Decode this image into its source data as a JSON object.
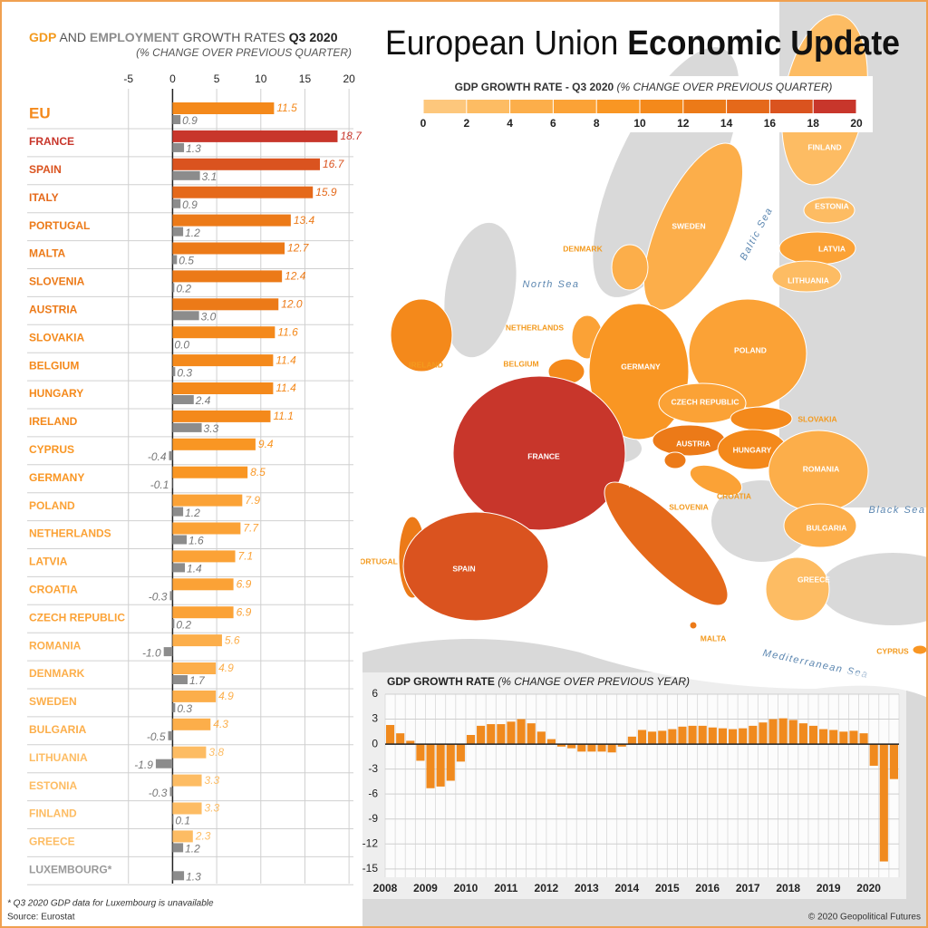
{
  "title": "European Union",
  "title_bold": "Economic Update",
  "footnote": "* Q3 2020 GDP data for Luxembourg is unavailable",
  "source": "Source: Eurostat",
  "copyright": "© 2020 Geopolitical Futures",
  "map": {
    "legend": {
      "title": "GDP GROWTH RATE - Q3 2020",
      "subtitle": "(% CHANGE OVER PREVIOUS QUARTER)",
      "ticks": [
        0,
        2,
        4,
        6,
        8,
        10,
        12,
        14,
        16,
        18,
        20
      ],
      "colors": [
        "#fdc77c",
        "#fdbc63",
        "#fcae4a",
        "#fba236",
        "#f99623",
        "#f4891b",
        "#ec7a18",
        "#e5691a",
        "#da531f",
        "#c8362b"
      ]
    },
    "countries": [
      "FINLAND",
      "ESTONIA",
      "SWEDEN",
      "LATVIA",
      "DENMARK",
      "LITHUANIA",
      "NETHERLANDS",
      "IRELAND",
      "BELGIUM",
      "GERMANY",
      "POLAND",
      "CZECH REPUBLIC",
      "SLOVAKIA",
      "AUSTRIA",
      "HUNGARY",
      "FRANCE",
      "ROMANIA",
      "ITALY",
      "CROATIA",
      "SLOVENIA",
      "PORTUGAL",
      "SPAIN",
      "BULGARIA",
      "GREECE",
      "MALTA",
      "CYPRUS"
    ],
    "seas": [
      "North Sea",
      "Baltic Sea",
      "Black Sea",
      "Mediterranean Sea"
    ]
  },
  "chart_data": [
    {
      "type": "bar",
      "orientation": "horizontal",
      "title_joiner": "AND",
      "title": "GROWTH RATES",
      "title_period": "Q3 2020",
      "subtitle": "(% CHANGE OVER PREVIOUS QUARTER)",
      "categories": [
        "EU",
        "FRANCE",
        "SPAIN",
        "ITALY",
        "PORTUGAL",
        "MALTA",
        "SLOVENIA",
        "AUSTRIA",
        "SLOVAKIA",
        "BELGIUM",
        "HUNGARY",
        "IRELAND",
        "CYPRUS",
        "GERMANY",
        "POLAND",
        "NETHERLANDS",
        "LATVIA",
        "CROATIA",
        "CZECH REPUBLIC",
        "ROMANIA",
        "DENMARK",
        "SWEDEN",
        "BULGARIA",
        "LITHUANIA",
        "ESTONIA",
        "FINLAND",
        "GREECE",
        "LUXEMBOURG*"
      ],
      "series": [
        {
          "name": "GDP",
          "values": [
            11.5,
            18.7,
            16.7,
            15.9,
            13.4,
            12.7,
            12.4,
            12.0,
            11.6,
            11.4,
            11.4,
            11.1,
            9.4,
            8.5,
            7.9,
            7.7,
            7.1,
            6.9,
            6.9,
            5.6,
            4.9,
            4.9,
            4.3,
            3.8,
            3.3,
            3.3,
            2.3,
            null
          ],
          "value_labels": [
            "11.5",
            "18.7",
            "16.7",
            "15.9",
            "13.4",
            "12.7",
            "12.4",
            "12.0",
            "11.6",
            "11.4",
            "11.4",
            "11.1",
            "9.4",
            "8.5",
            "7.9",
            "7.7",
            "7.1",
            "6.9",
            "6.9",
            "5.6",
            "4.9",
            "4.9",
            "4.3",
            "3.8",
            "3.3",
            "3.3",
            "2.3",
            null
          ]
        },
        {
          "name": "EMPLOYMENT",
          "color": "#8c8c8c",
          "values": [
            0.9,
            1.3,
            3.1,
            0.9,
            1.2,
            0.5,
            0.2,
            3.0,
            0.0,
            0.3,
            2.4,
            3.3,
            -0.4,
            -0.1,
            1.2,
            1.6,
            1.4,
            -0.3,
            0.2,
            -1.0,
            1.7,
            0.3,
            -0.5,
            -1.9,
            -0.3,
            0.1,
            1.2,
            1.3
          ],
          "value_labels": [
            "0.9",
            "1.3",
            "3.1",
            "0.9",
            "1.2",
            "0.5",
            "0.2",
            "3.0",
            "0.0",
            "0.3",
            "2.4",
            "3.3",
            "-0.4",
            "-0.1",
            "1.2",
            "1.6",
            "1.4",
            "-0.3",
            "0.2",
            "-1.0",
            "1.7",
            "0.3",
            "-0.5",
            "-1.9",
            "-0.3",
            "0.1",
            "1.2",
            "1.3"
          ]
        }
      ],
      "xlim": [
        -6,
        20.5
      ],
      "xticks": [
        -5,
        0,
        5,
        10,
        15,
        20
      ],
      "grid": true
    },
    {
      "type": "bar",
      "orientation": "vertical",
      "title": "GDP GROWTH RATE",
      "subtitle": "(% CHANGE OVER PREVIOUS YEAR)",
      "color": "#f08a1e",
      "categories": [
        "2008",
        null,
        null,
        null,
        "2009",
        null,
        null,
        null,
        "2010",
        null,
        null,
        null,
        "2011",
        null,
        null,
        null,
        "2012",
        null,
        null,
        null,
        "2013",
        null,
        null,
        null,
        "2014",
        null,
        null,
        null,
        "2015",
        null,
        null,
        null,
        "2016",
        null,
        null,
        null,
        "2017",
        null,
        null,
        null,
        "2018",
        null,
        null,
        null,
        "2019",
        null,
        null,
        null,
        "2020",
        null,
        null
      ],
      "values": [
        2.3,
        1.3,
        0.4,
        -2.0,
        -5.3,
        -5.1,
        -4.4,
        -2.1,
        1.1,
        2.2,
        2.4,
        2.4,
        2.7,
        3.0,
        2.5,
        1.5,
        0.6,
        -0.3,
        -0.5,
        -0.9,
        -0.9,
        -0.9,
        -1.0,
        -0.3,
        0.9,
        1.7,
        1.5,
        1.6,
        1.8,
        2.1,
        2.2,
        2.2,
        2.0,
        1.9,
        1.8,
        1.9,
        2.2,
        2.6,
        3.0,
        3.1,
        2.9,
        2.5,
        2.2,
        1.8,
        1.7,
        1.5,
        1.6,
        1.3,
        -2.6,
        -14.1,
        -4.2
      ],
      "ylim": [
        -16,
        6
      ],
      "yticks": [
        6,
        3,
        0,
        -3,
        -6,
        -9,
        -12,
        -15
      ],
      "grid": true
    }
  ]
}
